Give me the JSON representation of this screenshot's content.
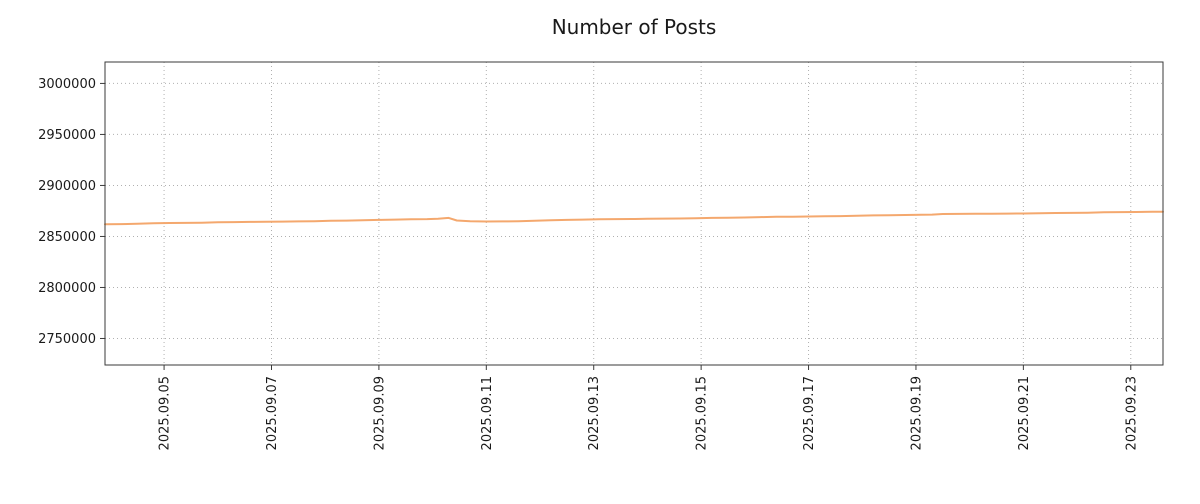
{
  "title": "Number of Posts",
  "chart_data": {
    "type": "line",
    "title": "Number of Posts",
    "xlabel": "",
    "ylabel": "",
    "legend": "none",
    "grid": "dotted",
    "xlim": [
      3.9,
      23.6
    ],
    "ylim": [
      2724000,
      3021000
    ],
    "x_ticks": [
      {
        "value": 5,
        "label": "2025.09.05"
      },
      {
        "value": 7,
        "label": "2025.09.07"
      },
      {
        "value": 9,
        "label": "2025.09.09"
      },
      {
        "value": 11,
        "label": "2025.09.11"
      },
      {
        "value": 13,
        "label": "2025.09.13"
      },
      {
        "value": 15,
        "label": "2025.09.15"
      },
      {
        "value": 17,
        "label": "2025.09.17"
      },
      {
        "value": 19,
        "label": "2025.09.19"
      },
      {
        "value": 21,
        "label": "2025.09.21"
      },
      {
        "value": 23,
        "label": "2025.09.23"
      }
    ],
    "y_ticks": [
      {
        "value": 2750000,
        "label": "2750000"
      },
      {
        "value": 2800000,
        "label": "2800000"
      },
      {
        "value": 2850000,
        "label": "2850000"
      },
      {
        "value": 2900000,
        "label": "2900000"
      },
      {
        "value": 2950000,
        "label": "2950000"
      },
      {
        "value": 3000000,
        "label": "3000000"
      }
    ],
    "colors": {
      "line": "#f4a86e",
      "grid": "#b0b0b0",
      "frame": "#3a3a3a",
      "text": "#1a1a1a",
      "background": "#ffffff"
    },
    "series": [
      {
        "name": "Number of Posts",
        "color": "#f4a86e",
        "x": [
          3.9,
          4.2,
          4.5,
          4.8,
          5.1,
          5.4,
          5.7,
          6.0,
          6.3,
          6.6,
          6.9,
          7.2,
          7.5,
          7.8,
          8.1,
          8.4,
          8.7,
          9.0,
          9.3,
          9.6,
          9.9,
          10.1,
          10.3,
          10.45,
          10.7,
          11.0,
          11.3,
          11.6,
          11.9,
          12.2,
          12.5,
          12.8,
          13.1,
          13.4,
          13.7,
          14.0,
          14.3,
          14.6,
          14.9,
          15.2,
          15.5,
          15.8,
          16.1,
          16.4,
          16.7,
          17.0,
          17.3,
          17.6,
          17.9,
          18.2,
          18.5,
          18.8,
          19.1,
          19.3,
          19.5,
          19.8,
          20.1,
          20.4,
          20.7,
          21.0,
          21.3,
          21.6,
          21.9,
          22.2,
          22.5,
          22.8,
          23.1,
          23.4,
          23.6
        ],
        "y": [
          2862000,
          2862100,
          2862400,
          2863000,
          2863200,
          2863300,
          2863500,
          2864000,
          2864100,
          2864300,
          2864500,
          2864600,
          2864800,
          2865000,
          2865300,
          2865500,
          2865800,
          2866200,
          2866500,
          2866800,
          2867000,
          2867400,
          2868200,
          2865600,
          2864900,
          2864700,
          2864800,
          2865000,
          2865300,
          2865800,
          2866200,
          2866500,
          2866800,
          2867000,
          2867100,
          2867300,
          2867500,
          2867600,
          2867800,
          2868200,
          2868400,
          2868600,
          2869000,
          2869300,
          2869400,
          2869600,
          2869800,
          2870000,
          2870300,
          2870600,
          2870800,
          2871000,
          2871200,
          2871400,
          2872000,
          2872100,
          2872200,
          2872300,
          2872400,
          2872500,
          2872700,
          2873000,
          2873100,
          2873300,
          2873800,
          2873900,
          2874000,
          2874200,
          2874300
        ]
      }
    ]
  }
}
